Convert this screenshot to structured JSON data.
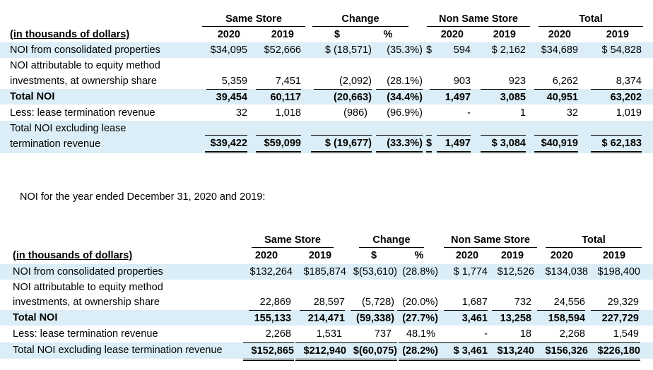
{
  "table1": {
    "group_headers": [
      "Same Store",
      "Change",
      "Non Same Store",
      "Total"
    ],
    "unit_label": "(in thousands of dollars)",
    "year_headers": [
      "2020",
      "2019",
      "$",
      "%",
      "2020",
      "2019",
      "2020",
      "2019"
    ],
    "rows": [
      {
        "label": "NOI from consolidated properties",
        "cells": [
          "$34,095",
          "$52,666",
          "$ (18,571)",
          "(35.3%)",
          "$",
          "594",
          "$  2,162",
          "$34,689",
          "$  54,828"
        ]
      },
      {
        "label": "NOI attributable to equity method",
        "cells": [
          "",
          "",
          "",
          "",
          "",
          "",
          "",
          "",
          ""
        ]
      },
      {
        "label": "investments, at ownership share",
        "cells": [
          "5,359",
          "7,451",
          "(2,092)",
          "(28.1%)",
          "",
          "903",
          "923",
          "6,262",
          "8,374"
        ]
      },
      {
        "label": "Total NOI",
        "cells": [
          "39,454",
          "60,117",
          "(20,663)",
          "(34.4%)",
          "",
          "1,497",
          "3,085",
          "40,951",
          "63,202"
        ]
      },
      {
        "label": "Less: lease termination revenue",
        "cells": [
          "32",
          "1,018",
          "(986)",
          "(96.9%)",
          "",
          "-",
          "1",
          "32",
          "1,019"
        ]
      },
      {
        "label": "Total NOI excluding lease",
        "cells": [
          "",
          "",
          "",
          "",
          "",
          "",
          "",
          "",
          ""
        ]
      },
      {
        "label": "termination revenue",
        "cells": [
          "$39,422",
          "$59,099",
          "$ (19,677)",
          "(33.3%)",
          "$",
          "1,497",
          "$  3,084",
          "$40,919",
          "$  62,183"
        ]
      }
    ]
  },
  "caption": "NOI for the year ended December 31, 2020 and 2019:",
  "table2": {
    "group_headers": [
      "Same Store",
      "Change",
      "Non Same Store",
      "Total"
    ],
    "unit_label": "(in thousands of dollars)",
    "year_headers": [
      "2020",
      "2019",
      "$",
      "%",
      "2020",
      "2019",
      "2020",
      "2019"
    ],
    "rows": [
      {
        "label": "NOI from consolidated properties",
        "cells": [
          "$132,264",
          "$185,874",
          "$(53,610)",
          "(28.8%)",
          "$  1,774",
          "$12,526",
          "$134,038",
          "$198,400"
        ]
      },
      {
        "label": "NOI attributable to equity method",
        "cells": [
          "",
          "",
          "",
          "",
          "",
          "",
          "",
          ""
        ]
      },
      {
        "label": "investments, at ownership share",
        "cells": [
          "22,869",
          "28,597",
          "(5,728)",
          "(20.0%)",
          "1,687",
          "732",
          "24,556",
          "29,329"
        ]
      },
      {
        "label": "Total NOI",
        "cells": [
          "155,133",
          "214,471",
          "(59,338)",
          "(27.7%)",
          "3,461",
          "13,258",
          "158,594",
          "227,729"
        ]
      },
      {
        "label": "Less: lease termination revenue",
        "cells": [
          "2,268",
          "1,531",
          "737",
          "48.1%",
          "-",
          "18",
          "2,268",
          "1,549"
        ]
      },
      {
        "label": "Total NOI excluding lease termination revenue",
        "cells": [
          "$152,865",
          "$212,940",
          "$(60,075)",
          "(28.2%)",
          "$  3,461",
          "$13,240",
          "$156,326",
          "$226,180"
        ]
      }
    ]
  }
}
